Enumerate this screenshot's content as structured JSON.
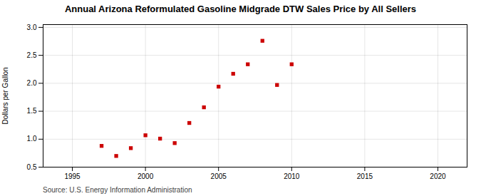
{
  "chart_data": {
    "type": "scatter",
    "title": "Annual Arizona Reformulated Gasoline Midgrade DTW Sales Price by All Sellers",
    "ylabel": "Dollars per Gallon",
    "annotation": "Source: U.S. Energy Information Administration",
    "x": [
      1997,
      1998,
      1999,
      2000,
      2001,
      2002,
      2003,
      2004,
      2005,
      2006,
      2007,
      2008,
      2009,
      2010
    ],
    "values": [
      0.88,
      0.7,
      0.84,
      1.07,
      1.01,
      0.93,
      1.29,
      1.57,
      1.94,
      2.17,
      2.34,
      2.76,
      1.97,
      2.34
    ],
    "color": "#cc0000",
    "marker": "square",
    "xlim": [
      1993,
      2022
    ],
    "ylim": [
      0.5,
      3.05
    ],
    "xticks": [
      1995,
      2000,
      2005,
      2010,
      2015,
      2020
    ],
    "yticks": [
      0.5,
      {
        "value": 1.0,
        "label": "1.0"
      },
      1.5,
      {
        "value": 2.0,
        "label": "2.0"
      },
      2.5,
      {
        "value": 3.0,
        "label": "3.0"
      }
    ],
    "grid": true
  }
}
